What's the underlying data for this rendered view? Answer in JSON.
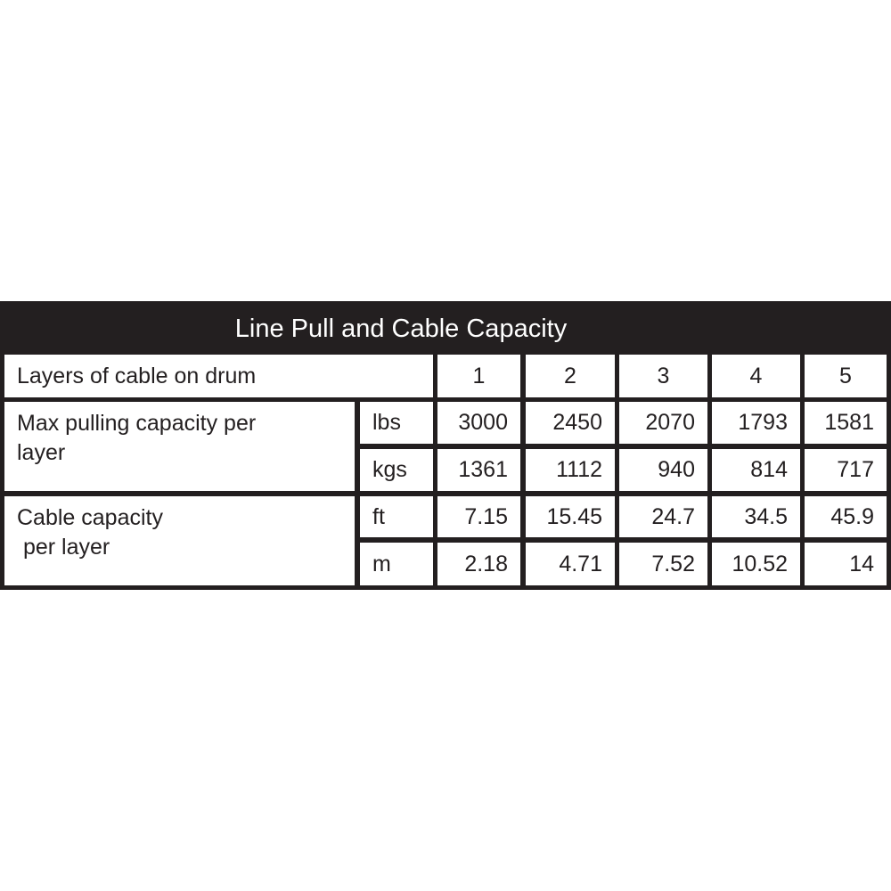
{
  "title": "Line Pull and Cable Capacity",
  "header": {
    "label": "Layers of cable on drum",
    "layers": [
      "1",
      "2",
      "3",
      "4",
      "5"
    ]
  },
  "groups": [
    {
      "label": "Max pulling capacity per layer",
      "rows": [
        {
          "unit": "lbs",
          "values": [
            "3000",
            "2450",
            "2070",
            "1793",
            "1581"
          ]
        },
        {
          "unit": "kgs",
          "values": [
            "1361",
            "1112",
            "940",
            "814",
            "717"
          ]
        }
      ]
    },
    {
      "label": "Cable capacity\n per layer",
      "rows": [
        {
          "unit": "ft",
          "values": [
            "7.15",
            "15.45",
            "24.7",
            "34.5",
            "45.9"
          ]
        },
        {
          "unit": "m",
          "values": [
            "2.18",
            "4.71",
            "7.52",
            "10.52",
            "14"
          ]
        }
      ]
    }
  ],
  "colors": {
    "border": "#231f20",
    "cell": "#ffffff"
  }
}
